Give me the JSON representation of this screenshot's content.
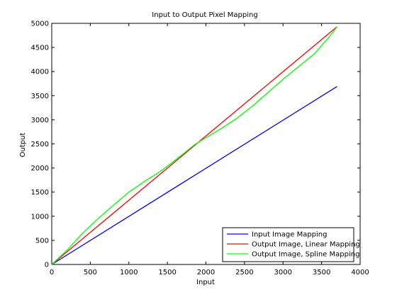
{
  "chart_data": {
    "type": "line",
    "title": "Input to Output Pixel Mapping",
    "xlabel": "Input",
    "ylabel": "Output",
    "xlim": [
      0,
      4000
    ],
    "ylim": [
      0,
      5000
    ],
    "xticks": [
      "0",
      "500",
      "1000",
      "1500",
      "2000",
      "2500",
      "3000",
      "3500",
      "4000"
    ],
    "yticks": [
      "0",
      "500",
      "1000",
      "1500",
      "2000",
      "2500",
      "3000",
      "3500",
      "4000",
      "4500",
      "5000"
    ],
    "grid": false,
    "legend_position": "bottom-right",
    "series": [
      {
        "name": "Input Image Mapping",
        "color": "#0000ff",
        "x": [
          0,
          3700
        ],
        "y": [
          0,
          3690
        ]
      },
      {
        "name": "Output Image, Linear Mapping",
        "color": "#ff0000",
        "x": [
          0,
          3700
        ],
        "y": [
          0,
          4930
        ]
      },
      {
        "name": "Output Image, Spline Mapping",
        "color": "#00ff00",
        "x": [
          0,
          200,
          400,
          600,
          800,
          1000,
          1200,
          1400,
          1600,
          1850,
          2000,
          2200,
          2400,
          2600,
          2800,
          3000,
          3200,
          3400,
          3600,
          3700
        ],
        "y": [
          0,
          300,
          650,
          950,
          1230,
          1500,
          1720,
          1920,
          2160,
          2480,
          2630,
          2820,
          3030,
          3280,
          3560,
          3840,
          4100,
          4360,
          4720,
          4930
        ]
      }
    ]
  }
}
